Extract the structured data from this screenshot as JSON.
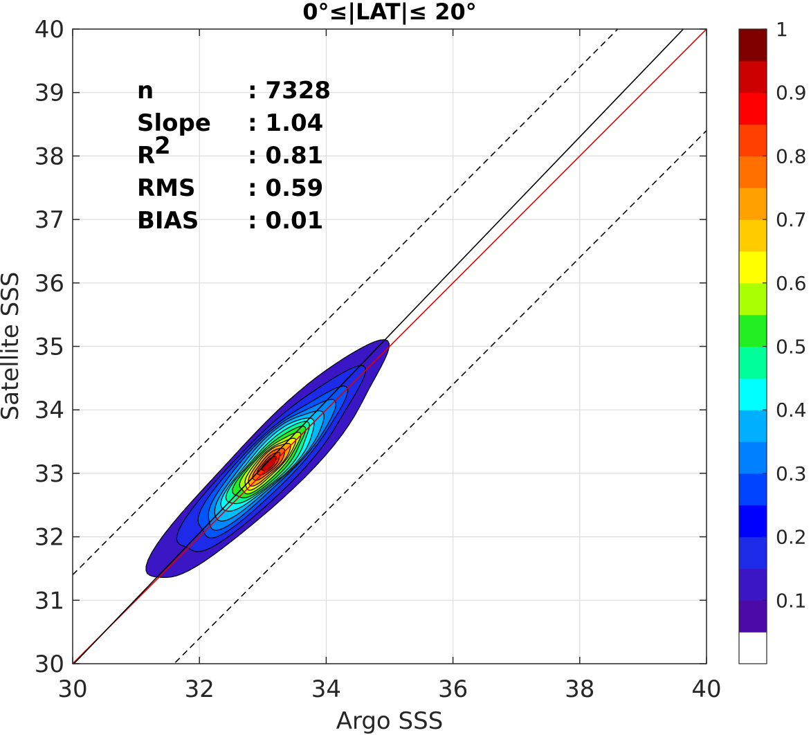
{
  "chart_data": {
    "type": "filled-contour",
    "title": "0°≤|LAT|≤ 20°",
    "xlabel": "Argo SSS",
    "ylabel": "Satellite SSS",
    "xlim": [
      30,
      40
    ],
    "ylim": [
      30,
      40
    ],
    "xticks": [
      30,
      32,
      34,
      36,
      38,
      40
    ],
    "yticks": [
      30,
      31,
      32,
      33,
      34,
      35,
      36,
      37,
      38,
      39,
      40
    ],
    "grid": true,
    "stats": [
      {
        "label": "n",
        "sep": ":",
        "value": "7328"
      },
      {
        "label": "Slope",
        "sep": ":",
        "value": "1.04"
      },
      {
        "label": "R",
        "sup": "2",
        "sep": ":",
        "value": "0.81"
      },
      {
        "label": "RMS",
        "sep": ":",
        "value": "0.59"
      },
      {
        "label": "BIAS",
        "sep": ":",
        "value": "0.01"
      }
    ],
    "lines": [
      {
        "id": "one-to-one",
        "color": "#e00000",
        "style": "solid",
        "slope": 1,
        "intercept": 0
      },
      {
        "id": "regression",
        "color": "#000000",
        "style": "solid",
        "slope": 1.04,
        "intercept": -1.22
      },
      {
        "id": "upper-bound",
        "color": "#000000",
        "style": "dashed",
        "slope": 1,
        "intercept": 1.4
      },
      {
        "id": "lower-bound",
        "color": "#000000",
        "style": "dashed",
        "slope": 1,
        "intercept": -1.6
      }
    ],
    "density": {
      "center": [
        33.1,
        33.15
      ],
      "angle_deg": 45,
      "levels": [
        {
          "level": 0.05,
          "a": 2.6,
          "b": 0.52,
          "color": "#3a16c4"
        },
        {
          "level": 0.15,
          "a": 2.0,
          "b": 0.44,
          "color": "#1d2be8"
        },
        {
          "level": 0.25,
          "a": 1.6,
          "b": 0.38,
          "color": "#0055ff"
        },
        {
          "level": 0.3,
          "a": 1.38,
          "b": 0.34,
          "color": "#0088ff"
        },
        {
          "level": 0.35,
          "a": 1.18,
          "b": 0.31,
          "color": "#00bbff"
        },
        {
          "level": 0.4,
          "a": 1.0,
          "b": 0.28,
          "color": "#00ffff"
        },
        {
          "level": 0.45,
          "a": 0.88,
          "b": 0.25,
          "color": "#00ff99"
        },
        {
          "level": 0.5,
          "a": 0.76,
          "b": 0.22,
          "color": "#22ee22"
        },
        {
          "level": 0.6,
          "a": 0.64,
          "b": 0.19,
          "color": "#aaff00"
        },
        {
          "level": 0.65,
          "a": 0.54,
          "b": 0.16,
          "color": "#ffee00"
        },
        {
          "level": 0.7,
          "a": 0.45,
          "b": 0.14,
          "color": "#ffa500"
        },
        {
          "level": 0.8,
          "a": 0.34,
          "b": 0.11,
          "color": "#ff6000"
        },
        {
          "level": 0.85,
          "a": 0.24,
          "b": 0.08,
          "color": "#ff2a00"
        },
        {
          "level": 0.95,
          "a": 0.15,
          "b": 0.055,
          "color": "#cc0000"
        }
      ]
    },
    "colorbar": {
      "ticks": [
        "0.1",
        "0.2",
        "0.3",
        "0.4",
        "0.5",
        "0.6",
        "0.7",
        "0.8",
        "0.9",
        "1"
      ],
      "colors": [
        "#ffffff",
        "#4c0aa6",
        "#3a16c4",
        "#1d2be8",
        "#0000ff",
        "#0044ff",
        "#0080ff",
        "#00b0ff",
        "#00ffff",
        "#00ff99",
        "#22ee22",
        "#aaff00",
        "#ffff00",
        "#ffcc00",
        "#ffa000",
        "#ff7000",
        "#ff4000",
        "#ff0000",
        "#cc0000",
        "#800000"
      ]
    }
  }
}
